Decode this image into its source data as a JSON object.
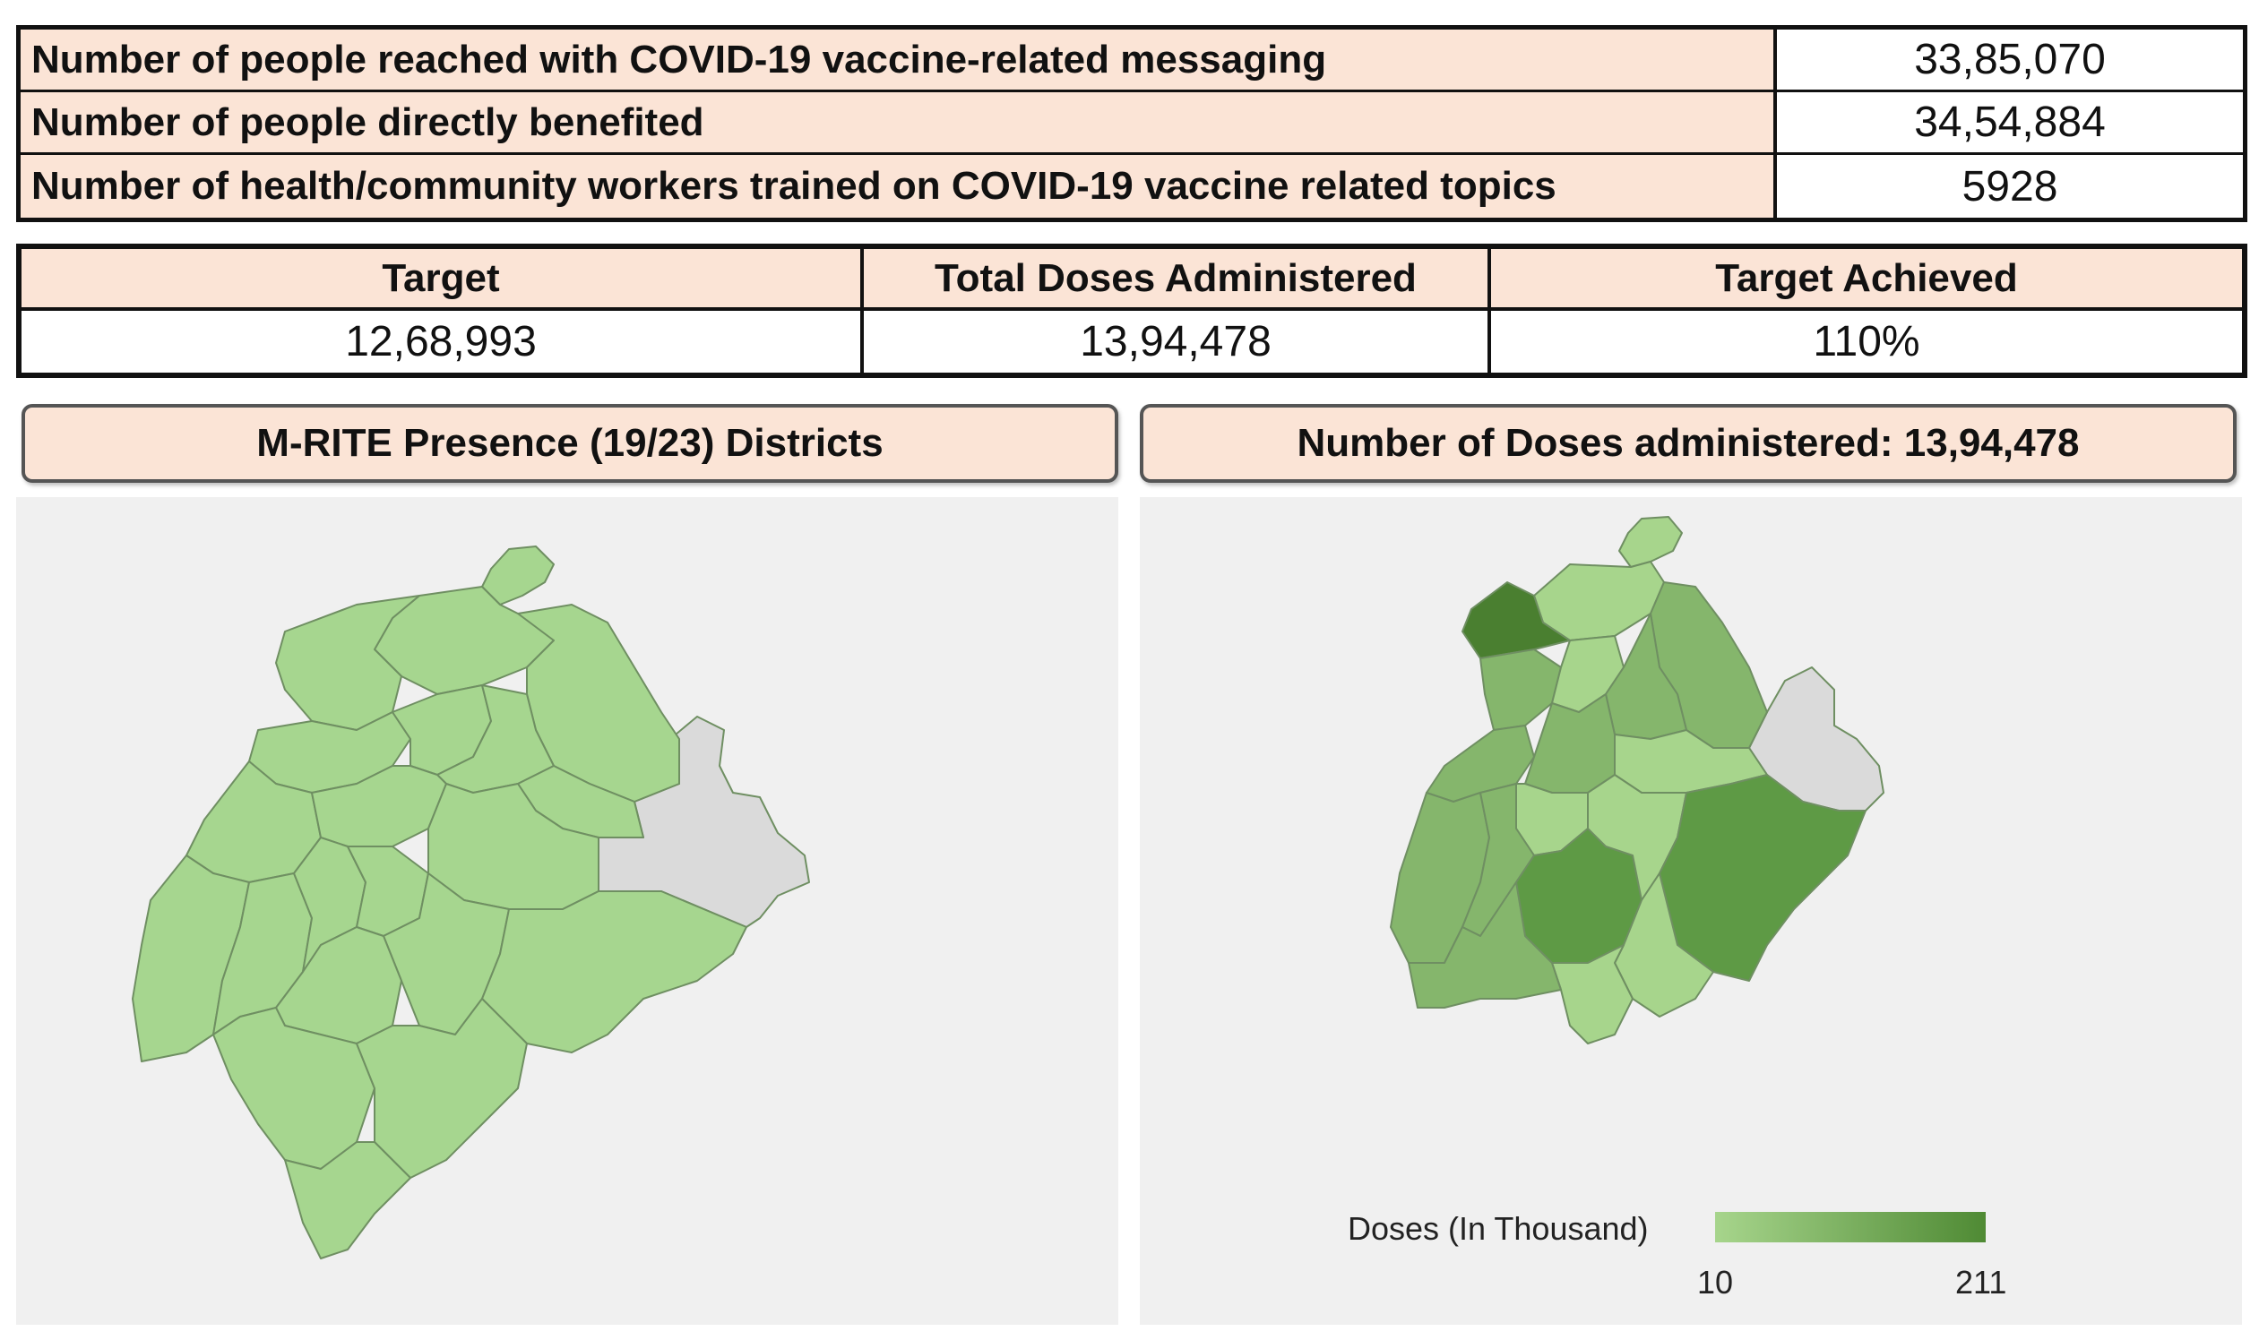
{
  "stats": [
    {
      "label": "Number of people reached with COVID-19 vaccine-related messaging",
      "value": "33,85,070"
    },
    {
      "label": "Number of people directly benefited",
      "value": "34,54,884"
    },
    {
      "label": "Number of health/community workers trained on COVID-19 vaccine related topics",
      "value": "5928"
    }
  ],
  "target_table": {
    "headers": [
      "Target",
      "Total Doses Administered",
      "Target Achieved"
    ],
    "values": [
      "12,68,993",
      "13,94,478",
      "110%"
    ]
  },
  "panels": {
    "left_title": "M-RITE Presence (19/23) Districts",
    "right_title": "Number of Doses administered: 13,94,478"
  },
  "legend": {
    "title": "Doses (In Thousand)",
    "min": "10",
    "max": "211",
    "color_min": "#a7d58c",
    "color_max": "#4f8a34"
  },
  "map_colors": {
    "presence": "#a6d68f",
    "no_presence": "#dadada",
    "light": "#a7d58c",
    "mid": "#85b66c",
    "dark": "#5e9a45",
    "darkest": "#4a7f30"
  }
}
